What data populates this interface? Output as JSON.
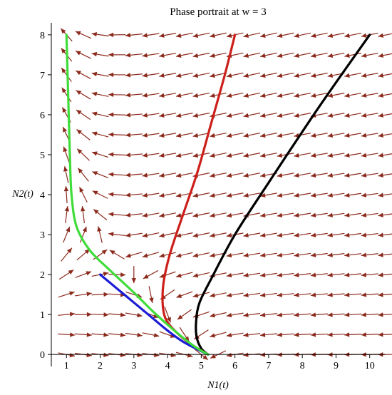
{
  "chart_data": {
    "type": "line",
    "title": "Phase portrait at w = 3",
    "xlabel": "N1(t)",
    "ylabel": "N2(t)",
    "xlim": [
      0.55,
      10.45
    ],
    "ylim": [
      -0.3,
      8.3
    ],
    "xticks": [
      1,
      2,
      3,
      4,
      5,
      6,
      7,
      8,
      9,
      10
    ],
    "yticks": [
      0,
      1,
      2,
      3,
      4,
      5,
      6,
      7,
      8
    ],
    "field_color": "#8b2a1c",
    "series": [
      {
        "color": "#000000",
        "x": [
          10.0,
          8.5,
          7.0,
          6.0,
          5.3,
          4.95,
          4.85,
          4.86,
          5.0,
          5.2
        ],
        "y": [
          8.0,
          6.2,
          4.3,
          3.0,
          1.9,
          1.3,
          0.85,
          0.45,
          0.15,
          0.0
        ]
      },
      {
        "color": "#cc1f1a",
        "x": [
          6.0,
          5.7,
          5.3,
          4.9,
          4.5,
          4.1,
          3.9,
          3.85,
          3.9,
          4.05,
          4.4,
          4.8,
          5.2
        ],
        "y": [
          8.0,
          7.0,
          5.8,
          4.6,
          3.6,
          2.6,
          1.9,
          1.4,
          1.0,
          0.75,
          0.45,
          0.2,
          0.0
        ]
      },
      {
        "color": "#1c1cd6",
        "x": [
          2.0,
          2.5,
          3.0,
          3.5,
          4.0,
          4.5,
          5.2
        ],
        "y": [
          2.0,
          1.65,
          1.3,
          0.95,
          0.6,
          0.3,
          0.0
        ]
      },
      {
        "color": "#3fdc3a",
        "x": [
          1.0,
          1.05,
          1.1,
          1.15,
          1.3,
          1.7,
          2.3,
          3.0,
          3.6,
          4.2,
          4.8,
          5.2
        ],
        "y": [
          8.0,
          6.5,
          5.0,
          4.0,
          3.2,
          2.6,
          2.1,
          1.55,
          1.05,
          0.6,
          0.2,
          0.0
        ]
      }
    ]
  }
}
